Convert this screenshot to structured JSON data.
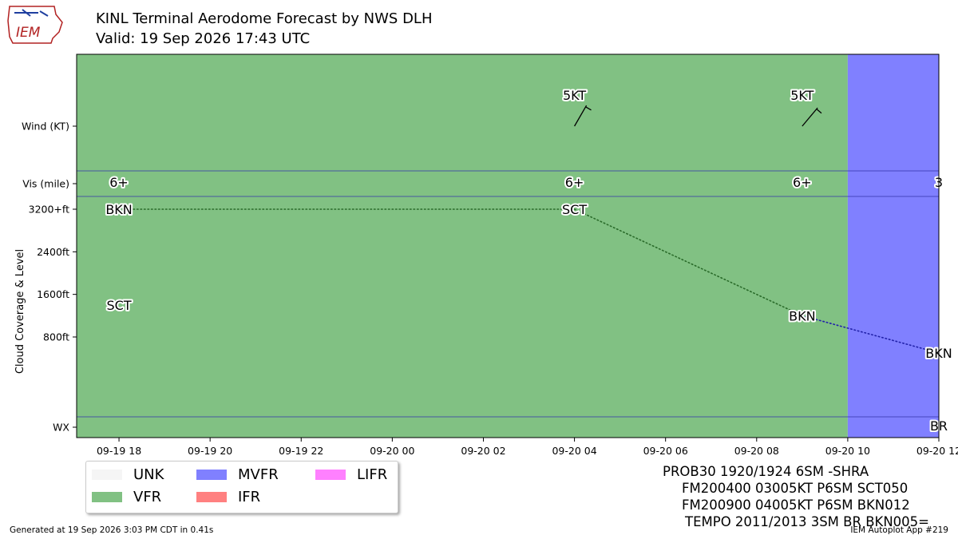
{
  "header": {
    "logo_text": "IEM",
    "title_line1": "KINL Terminal Aerodome Forecast by NWS DLH",
    "title_line2": "Valid: 19 Sep 2026 17:43 UTC"
  },
  "colors": {
    "UNK": "#f5f5f5",
    "VFR": "#81c183",
    "MVFR": "#8080ff",
    "IFR": "#ff8080",
    "LIFR": "#ff80ff",
    "row_line": "#3333aa",
    "cloud_line_vfr": "#2a6b2a",
    "cloud_line_mvfr": "#2222aa",
    "cloud_line_ifr": "#b03030"
  },
  "chart_data": {
    "type": "timeline",
    "x_tick_labels": [
      "09-19 18",
      "09-19 20",
      "09-19 22",
      "09-20 00",
      "09-20 02",
      "09-20 04",
      "09-20 06",
      "09-20 08",
      "09-20 10",
      "09-20 12"
    ],
    "x_range_hours": [
      -0.93,
      18
    ],
    "y_labels": {
      "wind": "Wind (KT)",
      "vis": "Vis (mile)",
      "wx": "WX",
      "cloud_axis": "Cloud Coverage & Level",
      "cloud_ticks": [
        "3200+ft",
        "2400ft",
        "1600ft",
        "800ft"
      ],
      "cloud_tick_values": [
        3200,
        2400,
        1600,
        800
      ]
    },
    "cloud_range_ft": [
      -700,
      3440
    ],
    "flight_category_periods": [
      {
        "start_h": -0.93,
        "end_h": 16,
        "category": "VFR"
      },
      {
        "start_h": 16,
        "end_h": 18,
        "category": "MVFR"
      },
      {
        "start_h": 18,
        "end_h": 21,
        "category": "IFR"
      }
    ],
    "wind": [
      {
        "h": 10,
        "label": "5KT",
        "direction_deg": 30,
        "speed_kt": 5
      },
      {
        "h": 15,
        "label": "5KT",
        "direction_deg": 40,
        "speed_kt": 5
      }
    ],
    "visibility": [
      {
        "h": 0,
        "label": "6+"
      },
      {
        "h": 10,
        "label": "6+"
      },
      {
        "h": 15,
        "label": "6+"
      },
      {
        "h": 18,
        "label": "3"
      }
    ],
    "clouds": [
      {
        "h": 0,
        "label": "BKN",
        "level_ft": 3200
      },
      {
        "h": 0,
        "label": "SCT",
        "level_ft": 1400
      },
      {
        "h": 10,
        "label": "SCT",
        "level_ft": 3200
      },
      {
        "h": 15,
        "label": "BKN",
        "level_ft": 1200
      },
      {
        "h": 18,
        "label": "BKN",
        "level_ft": 500
      }
    ],
    "cloud_line": [
      {
        "h": 0,
        "level_ft": 3200,
        "category": "VFR"
      },
      {
        "h": 10,
        "level_ft": 3200,
        "category": "VFR"
      },
      {
        "h": 15,
        "level_ft": 1200,
        "category": "MVFR"
      },
      {
        "h": 18,
        "level_ft": 500,
        "category": "IFR"
      }
    ],
    "weather": [
      {
        "h": 18,
        "label": "BR"
      }
    ]
  },
  "legend": {
    "items": [
      {
        "label": "UNK",
        "key": "UNK"
      },
      {
        "label": "MVFR",
        "key": "MVFR"
      },
      {
        "label": "LIFR",
        "key": "LIFR"
      },
      {
        "label": "VFR",
        "key": "VFR"
      },
      {
        "label": "IFR",
        "key": "IFR"
      }
    ]
  },
  "taf_text": {
    "line1": "PROB30 1920/1924 6SM -SHRA",
    "line2": "FM200400 03005KT P6SM SCT050",
    "line3": "FM200900 04005KT P6SM BKN012",
    "line4": "TEMPO 2011/2013 3SM BR BKN005="
  },
  "footer": {
    "left": "Generated at 19 Sep 2026 3:03 PM CDT in 0.41s",
    "right": "IEM Autoplot App #219"
  }
}
